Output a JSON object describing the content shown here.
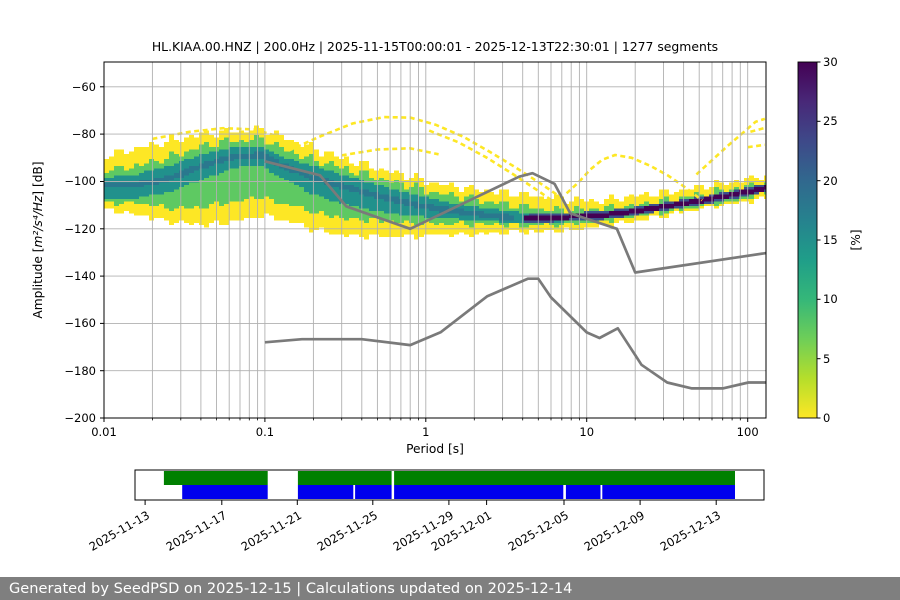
{
  "title": "HL.KIAA.00.HNZ | 200.0Hz | 2025-11-15T00:00:01 - 2025-12-13T22:30:01 | 1277 segments",
  "footer": "Generated by SeedPSD on 2025-12-15 | Calculations updated on 2025-12-14",
  "chart_data": {
    "type": "heatmap",
    "title": "HL.KIAA.00.HNZ | 200.0Hz | 2025-11-15T00:00:01 - 2025-12-13T22:30:01 | 1277 segments",
    "xlabel": "Period [s]",
    "ylabel": "Amplitude [m²/s⁴/Hz] [dB]",
    "ylabel_prefix": "Amplitude [",
    "ylabel_math": "m²/s⁴/Hz",
    "ylabel_suffix": "] [dB]",
    "x_scale": "log",
    "xlim": [
      0.01,
      130
    ],
    "ylim": [
      -200,
      -49.5
    ],
    "grid": true,
    "x_ticks": [
      {
        "label": "0.01",
        "value": 0.01
      },
      {
        "label": "0.1",
        "value": 0.1
      },
      {
        "label": "1",
        "value": 1
      },
      {
        "label": "10",
        "value": 10
      },
      {
        "label": "100",
        "value": 100
      }
    ],
    "y_ticks": [
      {
        "label": "−60",
        "value": -60
      },
      {
        "label": "−80",
        "value": -80
      },
      {
        "label": "−100",
        "value": -100
      },
      {
        "label": "−120",
        "value": -120
      },
      {
        "label": "−140",
        "value": -140
      },
      {
        "label": "−160",
        "value": -160
      },
      {
        "label": "−180",
        "value": -180
      },
      {
        "label": "−200",
        "value": -200
      }
    ],
    "y_gridlines": [
      -60,
      -80,
      -100,
      -120,
      -140,
      -160,
      -180
    ],
    "colorbar": {
      "label": "[%]",
      "vmin": 0,
      "vmax": 30,
      "ticks": [
        {
          "label": "0",
          "value": 0
        },
        {
          "label": "5",
          "value": 5
        },
        {
          "label": "10",
          "value": 10
        },
        {
          "label": "15",
          "value": 15
        },
        {
          "label": "20",
          "value": 20
        },
        {
          "label": "25",
          "value": 25
        },
        {
          "label": "30",
          "value": 30
        }
      ],
      "colormap": "viridis_r",
      "gradient_top_to_bottom": [
        "#440154",
        "#482878",
        "#3e4989",
        "#31688e",
        "#26828e",
        "#1f9e89",
        "#35b779",
        "#6ece58",
        "#b5de2b",
        "#fde725"
      ]
    },
    "colors": {
      "noise_model": "#7a7a7a",
      "grid": "#b0b0b0",
      "filament": "#fde725"
    },
    "ppsd_bands": [
      {
        "name": "outer-2pct",
        "color": "#fde725",
        "level_pct": 2,
        "points": [
          [
            0.01,
            -89,
            -112
          ],
          [
            0.016,
            -86,
            -114
          ],
          [
            0.025,
            -83,
            -117
          ],
          [
            0.04,
            -80,
            -118.5
          ],
          [
            0.065,
            -78.5,
            -117
          ],
          [
            0.095,
            -78,
            -114.5
          ],
          [
            0.13,
            -81,
            -116
          ],
          [
            0.2,
            -86,
            -120.5
          ],
          [
            0.3,
            -90,
            -122.5
          ],
          [
            0.5,
            -94.5,
            -123.5
          ],
          [
            0.8,
            -98,
            -123
          ],
          [
            1.3,
            -101.5,
            -122.5
          ],
          [
            2.2,
            -103.5,
            -122
          ],
          [
            3.5,
            -105,
            -121.5
          ],
          [
            5.5,
            -106.5,
            -121
          ],
          [
            8.0,
            -107.5,
            -120.5
          ],
          [
            12,
            -108,
            -119
          ],
          [
            20,
            -106.5,
            -116.5
          ],
          [
            35,
            -104,
            -113.5
          ],
          [
            60,
            -101.5,
            -111
          ],
          [
            100,
            -99,
            -108.5
          ],
          [
            130,
            -97.5,
            -107.5
          ]
        ]
      },
      {
        "name": "mid-8pct",
        "color": "#5ec962",
        "level_pct": 8,
        "points": [
          [
            0.01,
            -95.5,
            -109.5
          ],
          [
            0.016,
            -93.5,
            -109
          ],
          [
            0.025,
            -90,
            -111.5
          ],
          [
            0.04,
            -85.5,
            -111
          ],
          [
            0.065,
            -82.5,
            -108.5
          ],
          [
            0.095,
            -82,
            -106.5
          ],
          [
            0.13,
            -86,
            -109
          ],
          [
            0.2,
            -90.5,
            -113
          ],
          [
            0.3,
            -94,
            -115.5
          ],
          [
            0.5,
            -98.5,
            -116.5
          ],
          [
            0.8,
            -102,
            -117.5
          ],
          [
            1.3,
            -105.5,
            -118
          ],
          [
            2.2,
            -108,
            -118
          ],
          [
            3.5,
            -110,
            -118.5
          ],
          [
            5.5,
            -111.5,
            -118.5
          ],
          [
            8.0,
            -112,
            -118
          ],
          [
            12,
            -111.5,
            -117
          ],
          [
            20,
            -110,
            -115
          ],
          [
            35,
            -107.5,
            -112.5
          ],
          [
            60,
            -104.8,
            -109.8
          ],
          [
            100,
            -102,
            -107
          ],
          [
            130,
            -100.3,
            -105.3
          ]
        ]
      },
      {
        "name": "high-15pct",
        "color": "#21918c",
        "level_pct": 15,
        "points": [
          [
            0.01,
            -98.5,
            -107
          ],
          [
            0.016,
            -97,
            -107
          ],
          [
            0.025,
            -93.5,
            -104.5
          ],
          [
            0.04,
            -88.5,
            -99.5
          ],
          [
            0.065,
            -85.5,
            -94
          ],
          [
            0.095,
            -85.5,
            -93.5
          ],
          [
            0.13,
            -89.5,
            -99
          ],
          [
            0.2,
            -93.5,
            -105.5
          ],
          [
            0.3,
            -97,
            -109.5
          ],
          [
            0.5,
            -101.5,
            -112.5
          ],
          [
            0.8,
            -105,
            -114.5
          ],
          [
            1.3,
            -108.5,
            -115.5
          ],
          [
            2.2,
            -111,
            -116.5
          ],
          [
            3.5,
            -112.8,
            -117.3
          ],
          [
            5.5,
            -113.8,
            -117.3
          ],
          [
            8.0,
            -113.8,
            -116.8
          ],
          [
            12,
            -113,
            -116
          ],
          [
            20,
            -111.3,
            -114.1
          ],
          [
            35,
            -108.7,
            -111.5
          ],
          [
            60,
            -106,
            -108.8
          ],
          [
            100,
            -103.2,
            -106
          ],
          [
            130,
            -101.5,
            -104.3
          ]
        ]
      },
      {
        "name": "mode-20pct",
        "color": "#2a788e",
        "level_pct": 20,
        "half_width": 1.2,
        "points": [
          [
            0.01,
            -101.5
          ],
          [
            0.016,
            -101.5
          ],
          [
            0.025,
            -99
          ],
          [
            0.04,
            -93.5
          ],
          [
            0.065,
            -89.5
          ],
          [
            0.095,
            -89
          ],
          [
            0.13,
            -93.5
          ],
          [
            0.2,
            -98.5
          ],
          [
            0.3,
            -102
          ],
          [
            0.5,
            -106
          ],
          [
            0.8,
            -109.5
          ],
          [
            1.3,
            -112
          ],
          [
            2.2,
            -114
          ],
          [
            3.5,
            -115.3
          ]
        ]
      },
      {
        "name": "ridge-25pct",
        "color": "#3b528b",
        "level_pct": 25,
        "half_width": 1.7,
        "points": [
          [
            4.0,
            -115.8
          ],
          [
            6.0,
            -115.3
          ],
          [
            9.0,
            -114.8
          ],
          [
            13,
            -114.2
          ],
          [
            20,
            -112.5
          ],
          [
            30,
            -110.8
          ],
          [
            45,
            -108.8
          ],
          [
            70,
            -106.4
          ],
          [
            100,
            -104.4
          ],
          [
            130,
            -102.8
          ]
        ]
      },
      {
        "name": "ridge-30pct",
        "color": "#440154",
        "level_pct": 30,
        "half_width": 1.0,
        "points": [
          [
            4.0,
            -115.8
          ],
          [
            6.0,
            -115.3
          ],
          [
            9.0,
            -114.8
          ],
          [
            13,
            -114.2
          ],
          [
            20,
            -112.5
          ],
          [
            30,
            -110.8
          ],
          [
            45,
            -108.8
          ],
          [
            70,
            -106.4
          ],
          [
            100,
            -104.4
          ],
          [
            130,
            -102.8
          ]
        ]
      }
    ],
    "filaments": [
      {
        "name": "transient-arc-1",
        "points": [
          [
            0.02,
            -82
          ],
          [
            0.034,
            -79
          ],
          [
            0.055,
            -77.5
          ],
          [
            0.085,
            -78
          ],
          [
            0.115,
            -80.5
          ]
        ]
      },
      {
        "name": "transient-arc-2",
        "points": [
          [
            0.14,
            -87
          ],
          [
            0.22,
            -81
          ],
          [
            0.35,
            -75.5
          ],
          [
            0.55,
            -72.8
          ],
          [
            0.8,
            -73
          ],
          [
            1.15,
            -76
          ],
          [
            1.7,
            -81
          ],
          [
            2.5,
            -87.5
          ],
          [
            3.6,
            -94
          ],
          [
            5.2,
            -101
          ],
          [
            7,
            -107
          ]
        ]
      },
      {
        "name": "transient-arc-3",
        "points": [
          [
            1.05,
            -78.5
          ],
          [
            1.6,
            -83.5
          ],
          [
            2.4,
            -90
          ],
          [
            3.5,
            -97
          ],
          [
            5.0,
            -104
          ],
          [
            6.5,
            -109.5
          ]
        ]
      },
      {
        "name": "transient-arc-4",
        "points": [
          [
            7.5,
            -105
          ],
          [
            9,
            -100
          ],
          [
            10.5,
            -95
          ],
          [
            12.5,
            -90.8
          ],
          [
            15,
            -88.8
          ],
          [
            19,
            -90
          ],
          [
            25,
            -93.5
          ],
          [
            32,
            -97.5
          ],
          [
            42,
            -103
          ],
          [
            52,
            -108
          ]
        ]
      },
      {
        "name": "transient-arc-5",
        "points": [
          [
            48,
            -97
          ],
          [
            60,
            -91
          ],
          [
            75,
            -85
          ],
          [
            95,
            -79
          ],
          [
            112,
            -74.8
          ],
          [
            128,
            -73.5
          ]
        ]
      },
      {
        "name": "transient-streak-6",
        "points": [
          [
            100,
            -85.5
          ],
          [
            128,
            -84.5
          ]
        ]
      },
      {
        "name": "transient-streak-7",
        "points": [
          [
            104,
            -79
          ],
          [
            126,
            -77.5
          ]
        ]
      },
      {
        "name": "transient-arc-8",
        "points": [
          [
            0.3,
            -89
          ],
          [
            0.5,
            -86.5
          ],
          [
            0.8,
            -86
          ],
          [
            1.2,
            -88.5
          ]
        ]
      }
    ],
    "noise_models": {
      "nlnm": [
        [
          0.1,
          -168.0
        ],
        [
          0.17,
          -166.7
        ],
        [
          0.4,
          -166.7
        ],
        [
          0.8,
          -169.2
        ],
        [
          1.24,
          -163.7
        ],
        [
          2.4,
          -148.6
        ],
        [
          4.3,
          -141.1
        ],
        [
          5.0,
          -141.1
        ],
        [
          6.0,
          -149.0
        ],
        [
          10.0,
          -163.8
        ],
        [
          12.0,
          -166.2
        ],
        [
          15.6,
          -162.1
        ],
        [
          21.9,
          -177.5
        ],
        [
          31.6,
          -185.0
        ],
        [
          45.0,
          -187.5
        ],
        [
          70.0,
          -187.5
        ],
        [
          101.0,
          -185.0
        ],
        [
          130.0,
          -185.0
        ]
      ],
      "nhnm": [
        [
          0.1,
          -91.5
        ],
        [
          0.22,
          -97.4
        ],
        [
          0.32,
          -110.5
        ],
        [
          0.8,
          -120.0
        ],
        [
          3.8,
          -98.0
        ],
        [
          4.6,
          -96.5
        ],
        [
          6.3,
          -101.0
        ],
        [
          7.9,
          -113.5
        ],
        [
          15.4,
          -120.0
        ],
        [
          20.0,
          -138.5
        ],
        [
          130.0,
          -130.3
        ]
      ]
    }
  },
  "timeline": {
    "ticks": [
      {
        "label": "2025-11-13",
        "pct": 1.6
      },
      {
        "label": "2025-11-17",
        "pct": 13.8
      },
      {
        "label": "2025-11-21",
        "pct": 25.8
      },
      {
        "label": "2025-11-25",
        "pct": 37.8
      },
      {
        "label": "2025-11-29",
        "pct": 49.9
      },
      {
        "label": "2025-12-01",
        "pct": 55.9
      },
      {
        "label": "2025-12-05",
        "pct": 68.2
      },
      {
        "label": "2025-12-09",
        "pct": 80.3
      },
      {
        "label": "2025-12-13",
        "pct": 92.4
      }
    ],
    "green_segments": [
      [
        4.6,
        21.1
      ],
      [
        25.9,
        40.8
      ],
      [
        41.2,
        95.4
      ]
    ],
    "blue_segments": [
      [
        7.5,
        21.1
      ],
      [
        25.9,
        34.7
      ],
      [
        35.0,
        40.8
      ],
      [
        41.2,
        68.1
      ],
      [
        68.5,
        74.0
      ],
      [
        74.3,
        95.4
      ]
    ],
    "colors": {
      "data_available": "#008000",
      "psd_coverage": "#0000ee"
    }
  }
}
